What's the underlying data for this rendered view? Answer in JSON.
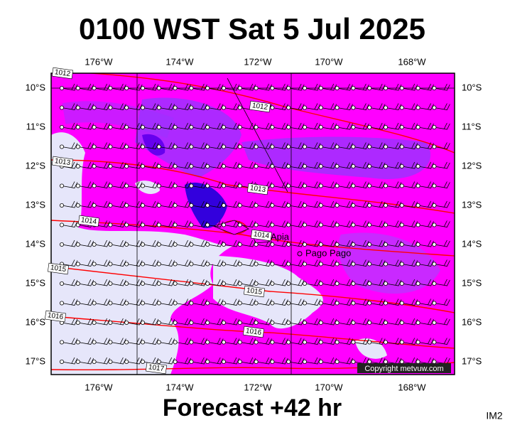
{
  "header": {
    "title": "0100 WST Sat 5 Jul 2025"
  },
  "axes": {
    "lon_labels": [
      "176°W",
      "174°W",
      "172°W",
      "170°W",
      "168°W"
    ],
    "lat_labels": [
      "10°S",
      "11°S",
      "12°S",
      "13°S",
      "14°S",
      "15°S",
      "16°S",
      "17°S"
    ]
  },
  "isobar_labels": [
    "1012",
    "1012",
    "1013",
    "1013",
    "1014",
    "1014",
    "1015",
    "1015",
    "1016",
    "1016",
    "1017"
  ],
  "places": [
    "Apia",
    "Pago Pago"
  ],
  "copyright": "Copyright metvuw.com",
  "footer": {
    "forecast": "Forecast +42 hr",
    "image_id": "IM2"
  }
}
